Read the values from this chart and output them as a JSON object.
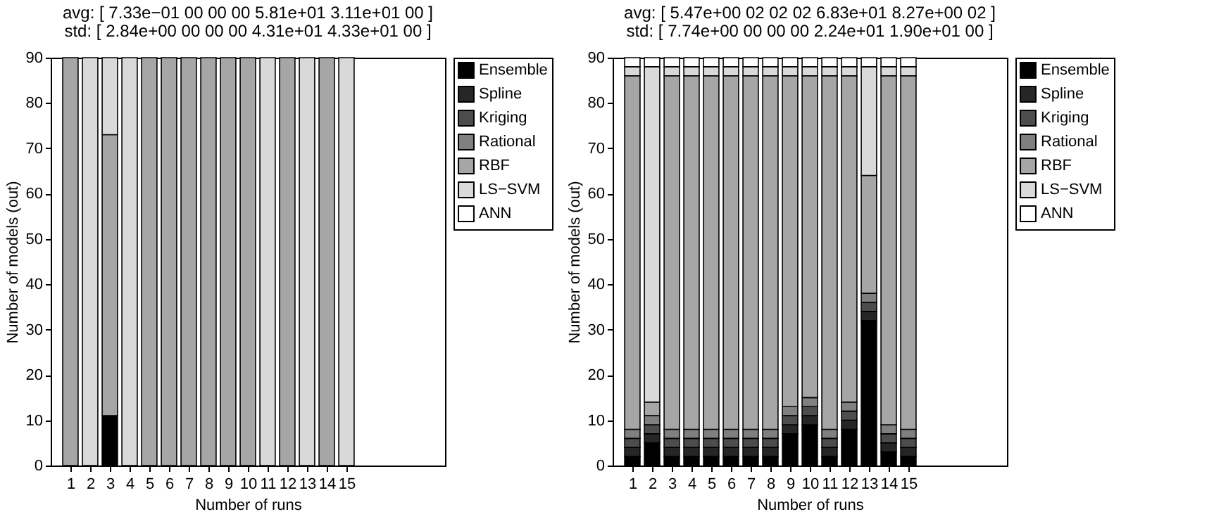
{
  "chart_data": [
    {
      "type": "bar",
      "stacked": true,
      "title": "avg: [  7.33e−01  00  00  00  5.81e+01  3.11e+01  00  ]",
      "subtitle": "std: [  2.84e+00  00  00  00  4.31e+01  4.33e+01  00  ]",
      "xlabel": "Number of runs",
      "ylabel": "Number of models (out)",
      "x": [
        1,
        2,
        3,
        4,
        5,
        6,
        7,
        8,
        9,
        10,
        11,
        12,
        13,
        14,
        15
      ],
      "xlim": [
        0,
        20
      ],
      "xticks": [
        1,
        2,
        3,
        4,
        5,
        6,
        7,
        8,
        9,
        10,
        11,
        12,
        13,
        14,
        15
      ],
      "ylim": [
        0,
        90
      ],
      "yticks": [
        0,
        10,
        20,
        30,
        40,
        50,
        60,
        70,
        80,
        90
      ],
      "grid": false,
      "legend": "right",
      "series": [
        {
          "name": "Ensemble",
          "color": "#000000",
          "values": [
            0,
            0,
            11,
            0,
            0,
            0,
            0,
            0,
            0,
            0,
            0,
            0,
            0,
            0,
            0
          ]
        },
        {
          "name": "Spline",
          "color": "#262626",
          "values": [
            0,
            0,
            0,
            0,
            0,
            0,
            0,
            0,
            0,
            0,
            0,
            0,
            0,
            0,
            0
          ]
        },
        {
          "name": "Kriging",
          "color": "#4d4d4d",
          "values": [
            0,
            0,
            0,
            0,
            0,
            0,
            0,
            0,
            0,
            0,
            0,
            0,
            0,
            0,
            0
          ]
        },
        {
          "name": "Rational",
          "color": "#808080",
          "values": [
            0,
            0,
            0,
            0,
            0,
            0,
            0,
            0,
            0,
            0,
            0,
            0,
            0,
            0,
            0
          ]
        },
        {
          "name": "RBF",
          "color": "#a6a6a6",
          "values": [
            90,
            0,
            62,
            0,
            90,
            90,
            90,
            90,
            90,
            90,
            0,
            90,
            0,
            90,
            0
          ]
        },
        {
          "name": "LS−SVM",
          "color": "#d9d9d9",
          "values": [
            0,
            90,
            17,
            90,
            0,
            0,
            0,
            0,
            0,
            0,
            90,
            0,
            90,
            0,
            90
          ]
        },
        {
          "name": "ANN",
          "color": "#ffffff",
          "values": [
            0,
            0,
            0,
            0,
            0,
            0,
            0,
            0,
            0,
            0,
            0,
            0,
            0,
            0,
            0
          ]
        }
      ]
    },
    {
      "type": "bar",
      "stacked": true,
      "title": "avg: [  5.47e+00  02  02  02  6.83e+01  8.27e+00  02  ]",
      "subtitle": "std: [  7.74e+00  00  00  00  2.24e+01  1.90e+01  00  ]",
      "xlabel": "Number of runs",
      "ylabel": "Number of models (out)",
      "x": [
        1,
        2,
        3,
        4,
        5,
        6,
        7,
        8,
        9,
        10,
        11,
        12,
        13,
        14,
        15
      ],
      "xlim": [
        0,
        20
      ],
      "xticks": [
        1,
        2,
        3,
        4,
        5,
        6,
        7,
        8,
        9,
        10,
        11,
        12,
        13,
        14,
        15
      ],
      "ylim": [
        0,
        90
      ],
      "yticks": [
        0,
        10,
        20,
        30,
        40,
        50,
        60,
        70,
        80,
        90
      ],
      "grid": false,
      "legend": "right",
      "series": [
        {
          "name": "Ensemble",
          "color": "#000000",
          "values": [
            2,
            5,
            2,
            2,
            2,
            2,
            2,
            2,
            7,
            9,
            2,
            8,
            32,
            3,
            2
          ]
        },
        {
          "name": "Spline",
          "color": "#262626",
          "values": [
            2,
            2,
            2,
            2,
            2,
            2,
            2,
            2,
            2,
            2,
            2,
            2,
            2,
            2,
            2
          ]
        },
        {
          "name": "Kriging",
          "color": "#4d4d4d",
          "values": [
            2,
            2,
            2,
            2,
            2,
            2,
            2,
            2,
            2,
            2,
            2,
            2,
            2,
            2,
            2
          ]
        },
        {
          "name": "Rational",
          "color": "#808080",
          "values": [
            2,
            2,
            2,
            2,
            2,
            2,
            2,
            2,
            2,
            2,
            2,
            2,
            2,
            2,
            2
          ]
        },
        {
          "name": "RBF",
          "color": "#a6a6a6",
          "values": [
            78,
            3,
            78,
            78,
            78,
            78,
            78,
            78,
            73,
            71,
            78,
            72,
            26,
            77,
            78
          ]
        },
        {
          "name": "LS−SVM",
          "color": "#d9d9d9",
          "values": [
            2,
            74,
            2,
            2,
            2,
            2,
            2,
            2,
            2,
            2,
            2,
            2,
            24,
            2,
            2
          ]
        },
        {
          "name": "ANN",
          "color": "#ffffff",
          "values": [
            2,
            2,
            2,
            2,
            2,
            2,
            2,
            2,
            2,
            2,
            2,
            2,
            2,
            2,
            2
          ]
        }
      ]
    }
  ]
}
